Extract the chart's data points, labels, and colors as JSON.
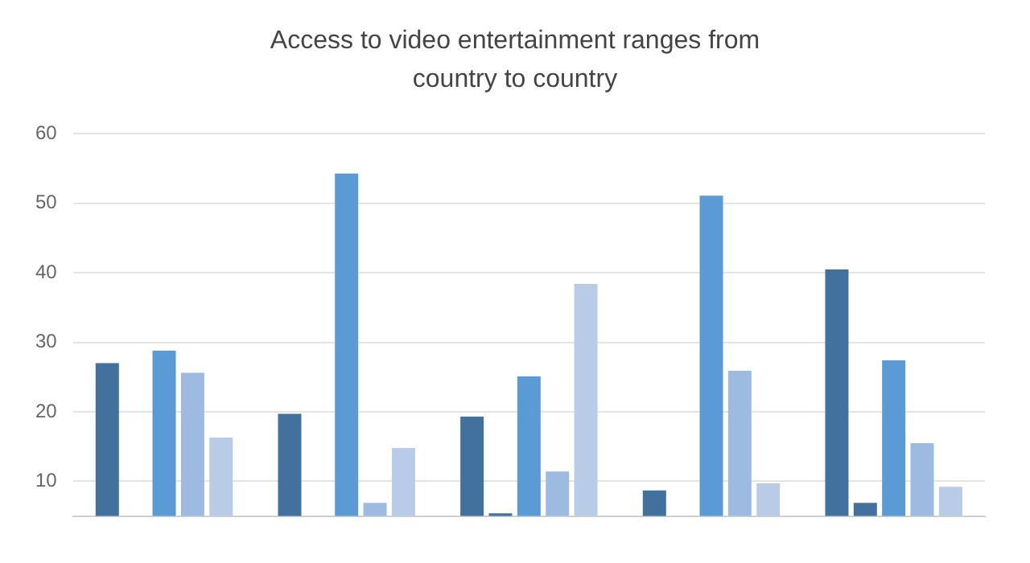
{
  "chart_data": {
    "type": "bar",
    "title": "Access to video entertainment ranges from country to country",
    "categories": [
      null,
      null,
      null,
      null,
      null
    ],
    "series": [
      {
        "color": "#41719c",
        "values": [
          27.0,
          19.7,
          19.3,
          8.7,
          40.5
        ]
      },
      {
        "color": "#41719c",
        "values": [
          null,
          null,
          5.4,
          null,
          6.9
        ]
      },
      {
        "color": "#5b9bd5",
        "values": [
          28.8,
          54.3,
          25.1,
          51.1,
          27.4
        ]
      },
      {
        "color": "#9dbbe0",
        "values": [
          25.6,
          6.9,
          11.4,
          25.9,
          15.5
        ]
      },
      {
        "color": "#b8cce8",
        "values": [
          16.3,
          14.8,
          38.4,
          9.7,
          9.2
        ]
      }
    ],
    "ylim": [
      5,
      60
    ],
    "yticks": [
      10,
      20,
      30,
      40,
      50,
      60
    ],
    "grid": "y",
    "legend": false
  }
}
